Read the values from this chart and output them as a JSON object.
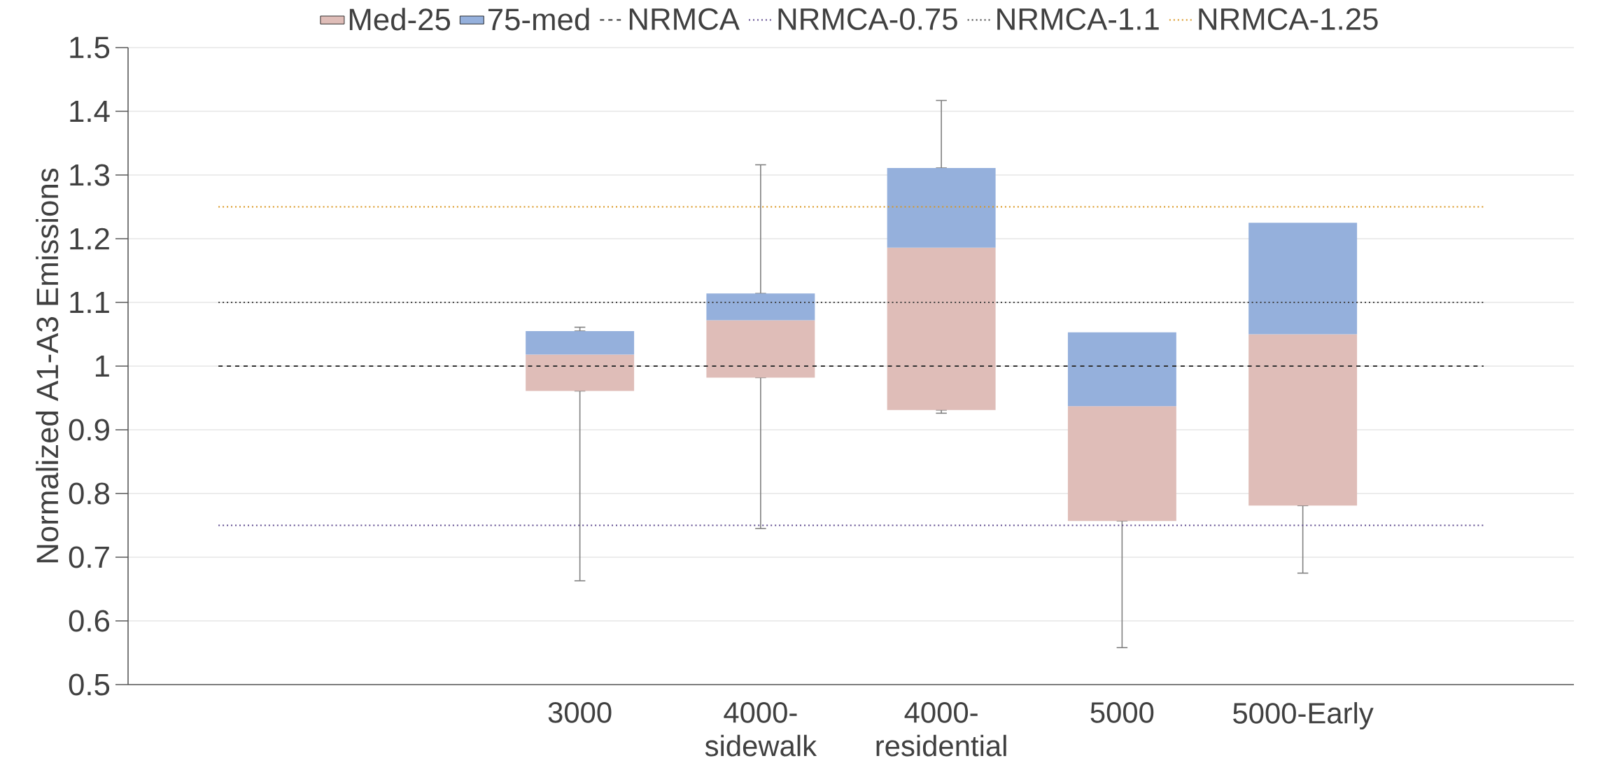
{
  "chart_data": {
    "type": "bar",
    "ylabel": "Normalized A1-A3 Emissions",
    "categories": [
      null,
      null,
      "3000",
      "4000-sidewalk",
      "4000-residential",
      "5000",
      "5000-Early",
      null
    ],
    "series": [
      {
        "name": "Med-25",
        "color": "#dfbdb8",
        "base": [
          null,
          null,
          0.961,
          0.982,
          0.931,
          0.757,
          0.781,
          null
        ],
        "values": [
          null,
          null,
          0.057,
          0.09,
          0.255,
          0.18,
          0.269,
          null
        ],
        "errors": [
          null,
          null,
          [
            0.663,
            0.961
          ],
          [
            0.745,
            0.982
          ],
          [
            0.926,
            0.931
          ],
          [
            0.558,
            0.757
          ],
          [
            0.675,
            0.781
          ],
          null
        ]
      },
      {
        "name": "75-med",
        "color": "#95b0dc",
        "base": [
          null,
          null,
          1.018,
          1.072,
          1.186,
          0.937,
          1.05,
          null
        ],
        "values": [
          null,
          null,
          0.037,
          0.042,
          0.125,
          0.116,
          0.175,
          null
        ],
        "errors": [
          null,
          null,
          [
            1.055,
            1.061
          ],
          [
            1.114,
            1.316
          ],
          [
            1.311,
            1.417
          ],
          null,
          null,
          null
        ]
      }
    ],
    "ref_lines": [
      {
        "axis": "y",
        "value": 1.0,
        "label": "NRMCA",
        "color": "#333333",
        "line_style": "dashed"
      },
      {
        "axis": "y",
        "value": 0.75,
        "label": "NRMCA-0.75",
        "color": "#5e4a8e",
        "line_style": "dotted"
      },
      {
        "axis": "y",
        "value": 1.1,
        "label": "NRMCA-1.1",
        "color": "#404040",
        "line_style": "dotted"
      },
      {
        "axis": "y",
        "value": 1.25,
        "label": "NRMCA-1.25",
        "color": "#d9951e",
        "line_style": "dotted"
      }
    ],
    "ylim": [
      0.5,
      1.5
    ],
    "yticks": [
      0.5,
      0.6,
      0.7,
      0.8,
      0.9,
      1,
      1.1,
      1.2,
      1.3,
      1.4,
      1.5
    ],
    "grid": "y",
    "legend": "top"
  }
}
